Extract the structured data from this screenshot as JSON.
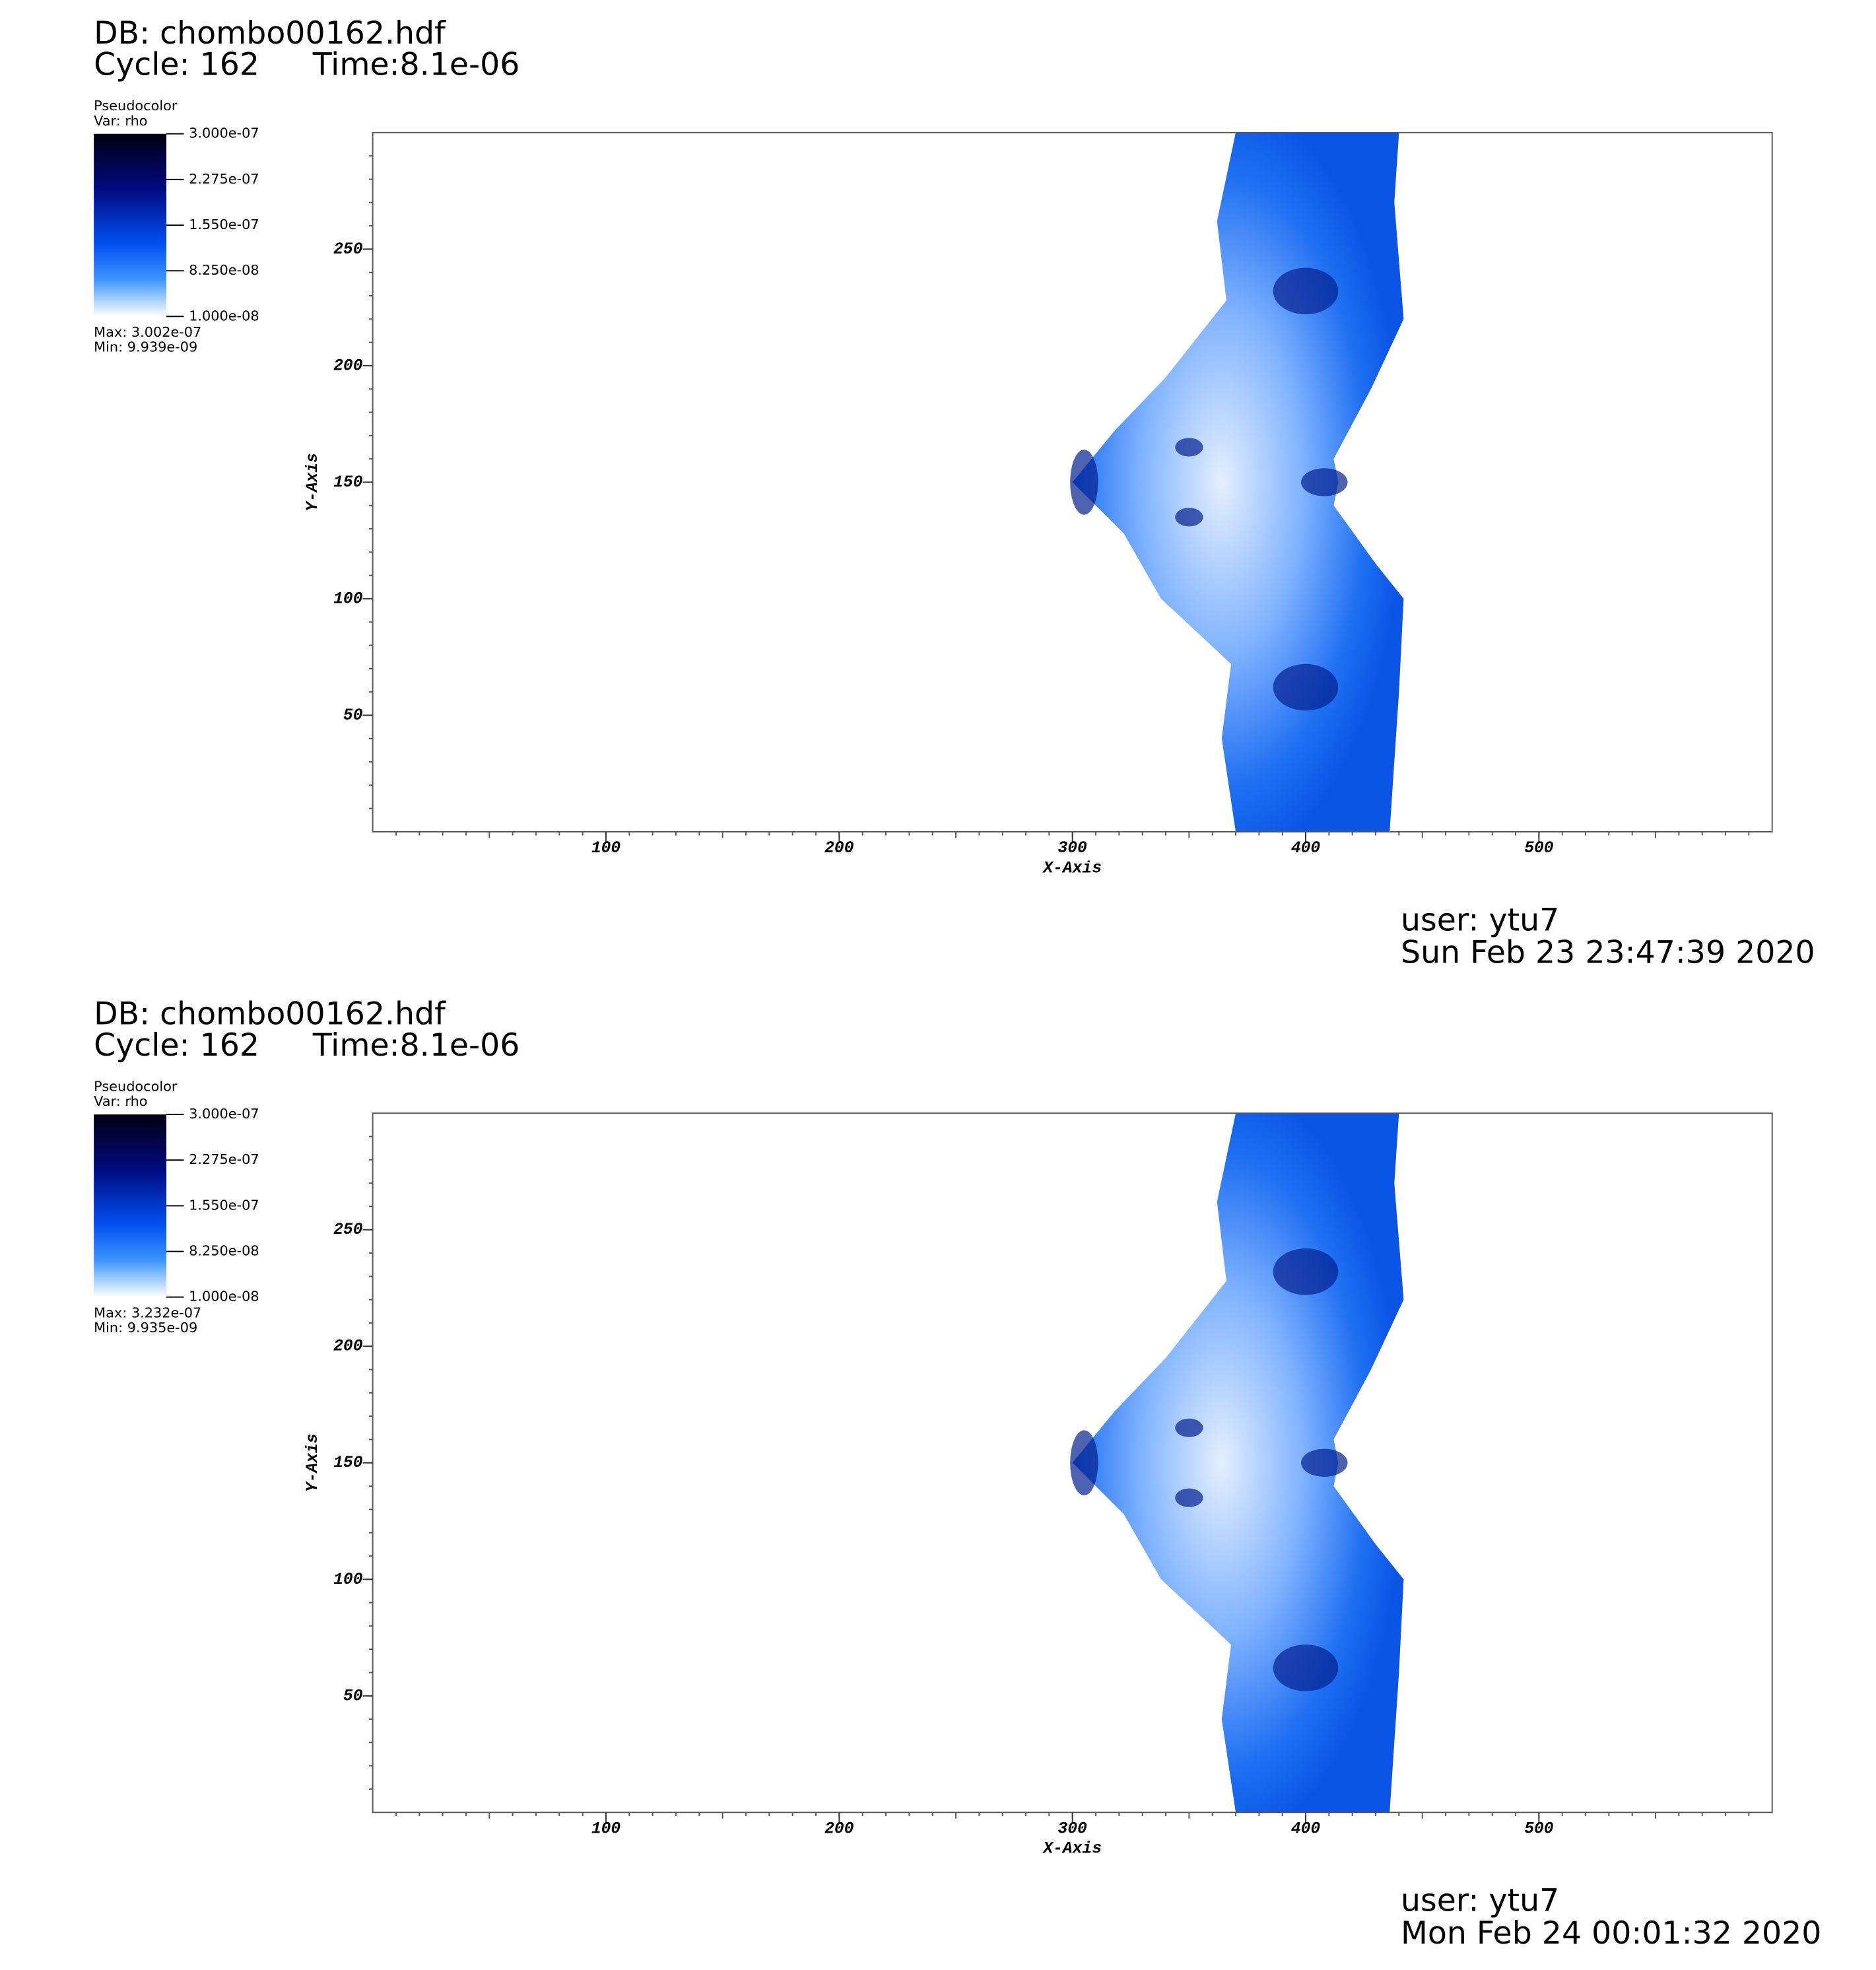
{
  "chart_data": [
    {
      "type": "pseudocolor",
      "title": "DB: chombo00162.hdf",
      "cycle": "Cycle: 162",
      "time": "Time:8.1e-06",
      "legend_title": "Pseudocolor",
      "variable": "Var: rho",
      "clim": [
        1e-08,
        3e-07
      ],
      "cticks": [
        {
          "value": 3e-07,
          "label": "3.000e-07"
        },
        {
          "value": 2.275e-07,
          "label": "2.275e-07"
        },
        {
          "value": 1.55e-07,
          "label": "1.550e-07"
        },
        {
          "value": 8.25e-08,
          "label": "8.250e-08"
        },
        {
          "value": 1e-08,
          "label": "1.000e-08"
        }
      ],
      "max_label": "Max:  3.002e-07",
      "min_label": "Min:  9.939e-09",
      "xlabel": "X-Axis",
      "ylabel": "Y-Axis",
      "xlim": [
        0,
        600
      ],
      "ylim": [
        0,
        300
      ],
      "xticks": [
        100,
        200,
        300,
        400,
        500
      ],
      "yticks": [
        50,
        100,
        150,
        200,
        250
      ],
      "user": "user: ytu7",
      "date": "Sun Feb 23 23:47:39 2020"
    },
    {
      "type": "pseudocolor",
      "title": "DB: chombo00162.hdf",
      "cycle": "Cycle: 162",
      "time": "Time:8.1e-06",
      "legend_title": "Pseudocolor",
      "variable": "Var: rho",
      "clim": [
        1e-08,
        3e-07
      ],
      "cticks": [
        {
          "value": 3e-07,
          "label": "3.000e-07"
        },
        {
          "value": 2.275e-07,
          "label": "2.275e-07"
        },
        {
          "value": 1.55e-07,
          "label": "1.550e-07"
        },
        {
          "value": 8.25e-08,
          "label": "8.250e-08"
        },
        {
          "value": 1e-08,
          "label": "1.000e-08"
        }
      ],
      "max_label": "Max:  3.232e-07",
      "min_label": "Min:  9.935e-09",
      "xlabel": "X-Axis",
      "ylabel": "Y-Axis",
      "xlim": [
        0,
        600
      ],
      "ylim": [
        0,
        300
      ],
      "xticks": [
        100,
        200,
        300,
        400,
        500
      ],
      "yticks": [
        50,
        100,
        150,
        200,
        250
      ],
      "user": "user: ytu7",
      "date": "Mon Feb 24 00:01:32 2020"
    }
  ]
}
